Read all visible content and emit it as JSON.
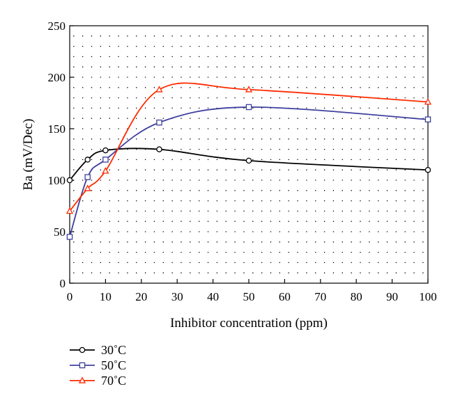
{
  "chart_data": {
    "type": "line",
    "xlabel": "Inhibitor concentration (ppm)",
    "ylabel": "Ba (mV/Dec)",
    "xlim": [
      0,
      100
    ],
    "ylim": [
      0,
      250
    ],
    "x_ticks": [
      0,
      10,
      20,
      30,
      40,
      50,
      60,
      70,
      80,
      90,
      100
    ],
    "y_ticks": [
      0,
      50,
      100,
      150,
      200,
      250
    ],
    "x_tick_labels": [
      "0",
      "10",
      "20",
      "30",
      "40",
      "50",
      "60",
      "70",
      "80",
      "90",
      "100"
    ],
    "y_tick_labels": [
      "0",
      "50",
      "100",
      "150",
      "200",
      "250"
    ],
    "grid": "dotted",
    "legend_position": "bottom-left",
    "smooth": true,
    "series": [
      {
        "name": "30˚C",
        "color": "#000000",
        "marker": "circle",
        "x": [
          0,
          5,
          10,
          25,
          50,
          100
        ],
        "y": [
          100,
          120,
          129,
          130,
          119,
          110
        ]
      },
      {
        "name": "50˚C",
        "color": "#3f3f9f",
        "marker": "square",
        "x": [
          0,
          5,
          10,
          25,
          50,
          100
        ],
        "y": [
          45,
          103,
          120,
          156,
          171,
          159
        ]
      },
      {
        "name": "70˚C",
        "color": "#ff2a00",
        "marker": "triangle",
        "x": [
          0,
          5,
          10,
          25,
          50,
          100
        ],
        "y": [
          70,
          92,
          109,
          188,
          188,
          176
        ]
      }
    ]
  }
}
